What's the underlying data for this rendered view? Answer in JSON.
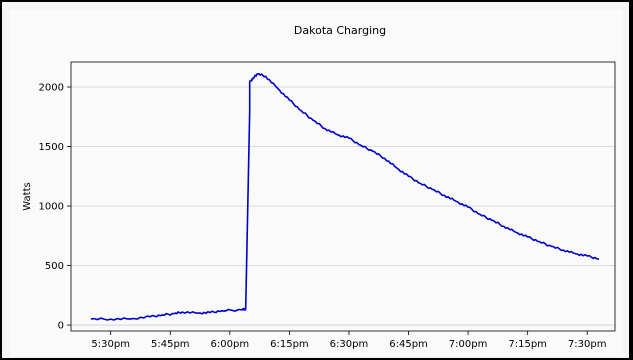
{
  "chart_data": {
    "type": "line",
    "title": "Dakota Charging",
    "xlabel": "",
    "ylabel": "Watts",
    "xlim": [
      "5:20pm",
      "7:37pm"
    ],
    "ylim": [
      -50,
      2210
    ],
    "grid": "horizontal",
    "x_ticks": [
      "5:30pm",
      "5:45pm",
      "6:00pm",
      "6:15pm",
      "6:30pm",
      "6:45pm",
      "7:00pm",
      "7:15pm",
      "7:30pm"
    ],
    "y_ticks": [
      0,
      500,
      1000,
      1500,
      2000
    ],
    "colors": {
      "line": "#0000cc",
      "grid": "#cfcfcf",
      "axes": "#000000"
    },
    "series": [
      {
        "name": "",
        "points": [
          [
            "5:25pm",
            50
          ],
          [
            "5:30pm",
            50
          ],
          [
            "5:35pm",
            52
          ],
          [
            "5:40pm",
            70
          ],
          [
            "5:43pm",
            85
          ],
          [
            "5:46pm",
            95
          ],
          [
            "5:48pm",
            110
          ],
          [
            "5:52pm",
            100
          ],
          [
            "5:55pm",
            105
          ],
          [
            "5:58pm",
            120
          ],
          [
            "6:03pm",
            128
          ],
          [
            "6:04pm",
            135
          ],
          [
            "6:05pm",
            1800
          ],
          [
            "6:05pm",
            2040
          ],
          [
            "6:06pm",
            2080
          ],
          [
            "6:07pm",
            2110
          ],
          [
            "6:09pm",
            2090
          ],
          [
            "6:12pm",
            1990
          ],
          [
            "6:15pm",
            1890
          ],
          [
            "6:18pm",
            1800
          ],
          [
            "6:21pm",
            1720
          ],
          [
            "6:24pm",
            1650
          ],
          [
            "6:27pm",
            1600
          ],
          [
            "6:30pm",
            1570
          ],
          [
            "6:33pm",
            1510
          ],
          [
            "6:36pm",
            1460
          ],
          [
            "6:39pm",
            1400
          ],
          [
            "6:42pm",
            1320
          ],
          [
            "6:45pm",
            1250
          ],
          [
            "6:48pm",
            1190
          ],
          [
            "6:51pm",
            1140
          ],
          [
            "6:54pm",
            1090
          ],
          [
            "6:57pm",
            1040
          ],
          [
            "7:00pm",
            990
          ],
          [
            "7:03pm",
            930
          ],
          [
            "7:06pm",
            880
          ],
          [
            "7:09pm",
            830
          ],
          [
            "7:12pm",
            780
          ],
          [
            "7:15pm",
            740
          ],
          [
            "7:18pm",
            700
          ],
          [
            "7:21pm",
            660
          ],
          [
            "7:24pm",
            630
          ],
          [
            "7:27pm",
            600
          ],
          [
            "7:30pm",
            580
          ],
          [
            "7:33pm",
            555
          ]
        ]
      }
    ]
  }
}
